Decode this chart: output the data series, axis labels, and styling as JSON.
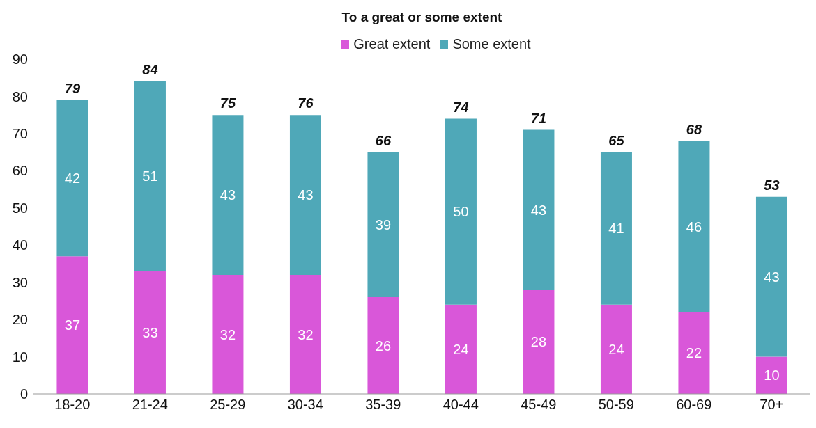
{
  "chart_data": {
    "type": "bar",
    "title": "To a great or some extent",
    "categories": [
      "18-20",
      "21-24",
      "25-29",
      "30-34",
      "35-39",
      "40-44",
      "45-49",
      "50-59",
      "60-69",
      "70+"
    ],
    "series": [
      {
        "name": "Great extent",
        "color": "#d957d9",
        "values": [
          37,
          33,
          32,
          32,
          26,
          24,
          28,
          24,
          22,
          10
        ]
      },
      {
        "name": "Some extent",
        "color": "#4fa8b8",
        "values": [
          42,
          51,
          43,
          43,
          39,
          50,
          43,
          41,
          46,
          43
        ]
      }
    ],
    "stacked": true,
    "data_labels": true,
    "totals": [
      "79",
      "84",
      "75",
      "76",
      "66",
      "74",
      "71",
      "65",
      "68",
      "53"
    ],
    "ylim": [
      0,
      90
    ],
    "yticks": [
      0,
      10,
      20,
      30,
      40,
      50,
      60,
      70,
      80,
      90
    ],
    "legend": "top"
  }
}
